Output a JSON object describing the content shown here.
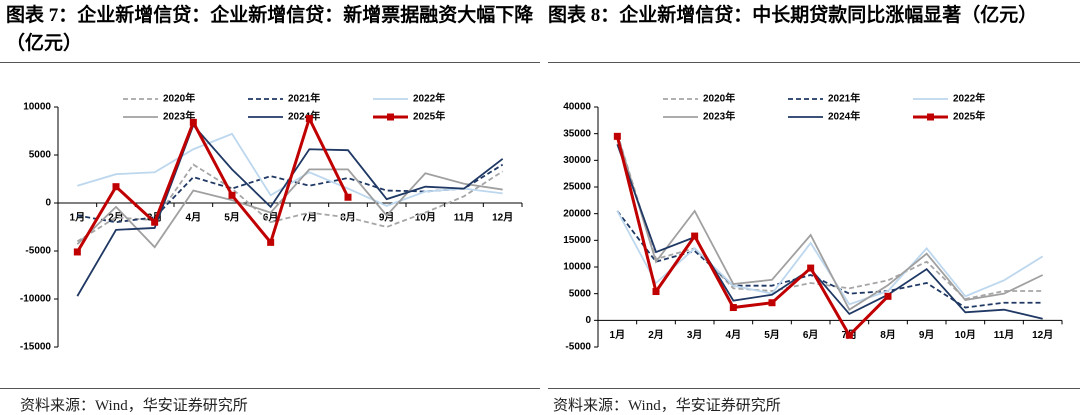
{
  "chart_data": [
    {
      "type": "line",
      "title": "图表 7：企业新增信贷：企业新增信贷：新增票据融资大幅下降（亿元）",
      "source": "资料来源：Wind，华安证券研究所",
      "categories": [
        "1月",
        "2月",
        "3月",
        "4月",
        "5月",
        "6月",
        "7月",
        "8月",
        "9月",
        "10月",
        "11月",
        "12月"
      ],
      "ylim": [
        -15000,
        10000
      ],
      "yticks": [
        -15000,
        -10000,
        -5000,
        0,
        5000,
        10000
      ],
      "grid": false,
      "series": [
        {
          "name": "2020年",
          "color": "#a6a6a6",
          "dash": true,
          "values": [
            -4000,
            -1500,
            -1800,
            4000,
            1500,
            -2000,
            -1000,
            -1500,
            -2500,
            -1000,
            700,
            3300
          ]
        },
        {
          "name": "2021年",
          "color": "#1f3864",
          "dash": true,
          "values": [
            -1300,
            -2000,
            -1500,
            2700,
            1500,
            2800,
            1800,
            2600,
            1300,
            1200,
            1500,
            4000
          ]
        },
        {
          "name": "2022年",
          "color": "#bdd7ee",
          "values": [
            1800,
            3000,
            3200,
            5600,
            7200,
            800,
            3200,
            1500,
            -300,
            1200,
            1500,
            1000
          ]
        },
        {
          "name": "2023年",
          "color": "#a0a0a0",
          "values": [
            -4300,
            -400,
            -4600,
            1300,
            300,
            -1000,
            3500,
            3500,
            -1300,
            3100,
            2000,
            1400
          ]
        },
        {
          "name": "2024年",
          "color": "#1f3864",
          "values": [
            -9700,
            -2800,
            -2600,
            8100,
            3500,
            -400,
            5600,
            5500,
            400,
            1700,
            1500,
            4600
          ]
        },
        {
          "name": "2025年",
          "color": "#c00000",
          "marker": "square",
          "linewidth": 3,
          "values": [
            -5100,
            1700,
            -2000,
            8400,
            800,
            -4100,
            8800,
            600,
            null,
            null,
            null,
            null
          ]
        }
      ]
    },
    {
      "type": "line",
      "title": "图表 8：企业新增信贷：中长期贷款同比涨幅显著（亿元）",
      "source": "资料来源：Wind，华安证券研究所",
      "categories": [
        "1月",
        "2月",
        "3月",
        "4月",
        "5月",
        "6月",
        "7月",
        "8月",
        "9月",
        "10月",
        "11月",
        "12月"
      ],
      "ylim": [
        -5000,
        40000
      ],
      "yticks": [
        -5000,
        0,
        5000,
        10000,
        15000,
        20000,
        25000,
        30000,
        35000,
        40000
      ],
      "grid": false,
      "series": [
        {
          "name": "2020年",
          "color": "#a6a6a6",
          "dash": true,
          "values": [
            35000,
            11500,
            13500,
            6000,
            5500,
            7000,
            6000,
            7500,
            11000,
            4000,
            5500,
            5500
          ]
        },
        {
          "name": "2021年",
          "color": "#1f3864",
          "dash": true,
          "values": [
            20500,
            11000,
            13000,
            6500,
            6500,
            8500,
            5000,
            5500,
            7000,
            2400,
            3300,
            3300
          ]
        },
        {
          "name": "2022年",
          "color": "#bdd7ee",
          "values": [
            20500,
            7000,
            13500,
            6500,
            5000,
            14500,
            3000,
            5500,
            13500,
            4500,
            7500,
            12000
          ]
        },
        {
          "name": "2023年",
          "color": "#a0a0a0",
          "values": [
            34800,
            11000,
            20500,
            6800,
            7600,
            16000,
            2000,
            6600,
            12500,
            3800,
            5000,
            8500
          ]
        },
        {
          "name": "2024年",
          "color": "#1f3864",
          "values": [
            33000,
            12800,
            15600,
            3700,
            4800,
            9600,
            1200,
            4800,
            9600,
            1500,
            2000,
            300
          ]
        },
        {
          "name": "2025年",
          "color": "#c00000",
          "marker": "square",
          "linewidth": 3,
          "values": [
            34500,
            5400,
            15800,
            2400,
            3300,
            9800,
            -2800,
            4500,
            null,
            null,
            null,
            null
          ]
        }
      ]
    }
  ]
}
